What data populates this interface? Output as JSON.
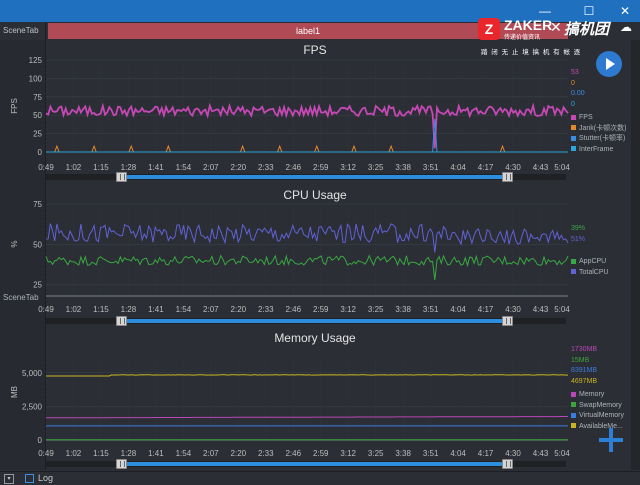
{
  "tabs": {
    "scene_tab": "SceneTab",
    "label_tab": "label1"
  },
  "side_tab": "SceneTab",
  "window_controls": {
    "minimize": "—",
    "maximize": "☐",
    "close": "✕"
  },
  "status": {
    "log_label": "Log",
    "arrow": "▾"
  },
  "watermark": {
    "logo_letter": "Z",
    "brand": "ZAKER",
    "tagline": "传递价值资讯",
    "separator": "✕",
    "partner": "搞机团",
    "cloud": "☁"
  },
  "top_links": "踏 闭 无 止 境   搞 机 有 帐 逐",
  "colors": {
    "fps": "#c548b5",
    "jank": "#e0882c",
    "stutter": "#3b8de0",
    "interframe": "#2aa6d9",
    "appcpu": "#3aa842",
    "totalcpu": "#6162d4",
    "memory": "#b946b9",
    "swap": "#3ea23e",
    "virtual": "#3a7de0",
    "available": "#c9b51f",
    "accent": "#1f71c0"
  },
  "chart_data": [
    {
      "type": "line",
      "title": "FPS",
      "xlabel": "",
      "ylabel": "FPS",
      "ylim": [
        0,
        125
      ],
      "yticks": [
        "125",
        "100",
        "75",
        "50",
        "25",
        "0"
      ],
      "xticks": [
        "0:49",
        "1:02",
        "1:15",
        "1:28",
        "1:41",
        "1:54",
        "2:07",
        "2:20",
        "2:33",
        "2:46",
        "2:59",
        "3:12",
        "3:25",
        "3:38",
        "3:51",
        "4:04",
        "4:17",
        "4:30",
        "4:43",
        "5:04"
      ],
      "series": [
        {
          "name": "FPS",
          "value_label": "53",
          "color": "#c548b5"
        },
        {
          "name": "Jank(卡顿次数)",
          "value_label": "0",
          "color": "#e0882c"
        },
        {
          "name": "Stutter(卡顿率)",
          "value_label": "0.00",
          "color": "#3b8de0"
        },
        {
          "name": "InterFrame",
          "value_label": "0",
          "color": "#2aa6d9"
        }
      ],
      "legend": "right"
    },
    {
      "type": "line",
      "title": "CPU Usage",
      "xlabel": "",
      "ylabel": "%",
      "ylim": [
        18,
        75
      ],
      "yticks": [
        "75",
        "50",
        "25"
      ],
      "xticks": [
        "0:49",
        "1:02",
        "1:15",
        "1:28",
        "1:41",
        "1:54",
        "2:07",
        "2:20",
        "2:33",
        "2:46",
        "2:59",
        "3:12",
        "3:25",
        "3:38",
        "3:51",
        "4:04",
        "4:17",
        "4:30",
        "4:43",
        "5:04"
      ],
      "series": [
        {
          "name": "AppCPU",
          "value_label": "39%",
          "color": "#3aa842"
        },
        {
          "name": "TotalCPU",
          "value_label": "51%",
          "color": "#6162d4"
        }
      ],
      "legend": "right"
    },
    {
      "type": "line",
      "title": "Memory Usage",
      "xlabel": "",
      "ylabel": "MB",
      "ylim": [
        0,
        5800
      ],
      "yticks": [
        "5,000",
        "2,500",
        "0"
      ],
      "xticks": [
        "0:49",
        "1:02",
        "1:15",
        "1:28",
        "1:41",
        "1:54",
        "2:07",
        "2:20",
        "2:33",
        "2:46",
        "2:59",
        "3:12",
        "3:25",
        "3:38",
        "3:51",
        "4:04",
        "4:17",
        "4:30",
        "4:43",
        "5:04"
      ],
      "series": [
        {
          "name": "Memory",
          "value_label": "1730MB",
          "color": "#b946b9"
        },
        {
          "name": "SwapMemory",
          "value_label": "15MB",
          "color": "#3ea23e"
        },
        {
          "name": "VirtualMemory",
          "value_label": "8391MB",
          "color": "#3a7de0"
        },
        {
          "name": "AvailableMe...",
          "value_label": "4697MB",
          "color": "#c9b51f"
        }
      ],
      "legend": "right"
    }
  ]
}
